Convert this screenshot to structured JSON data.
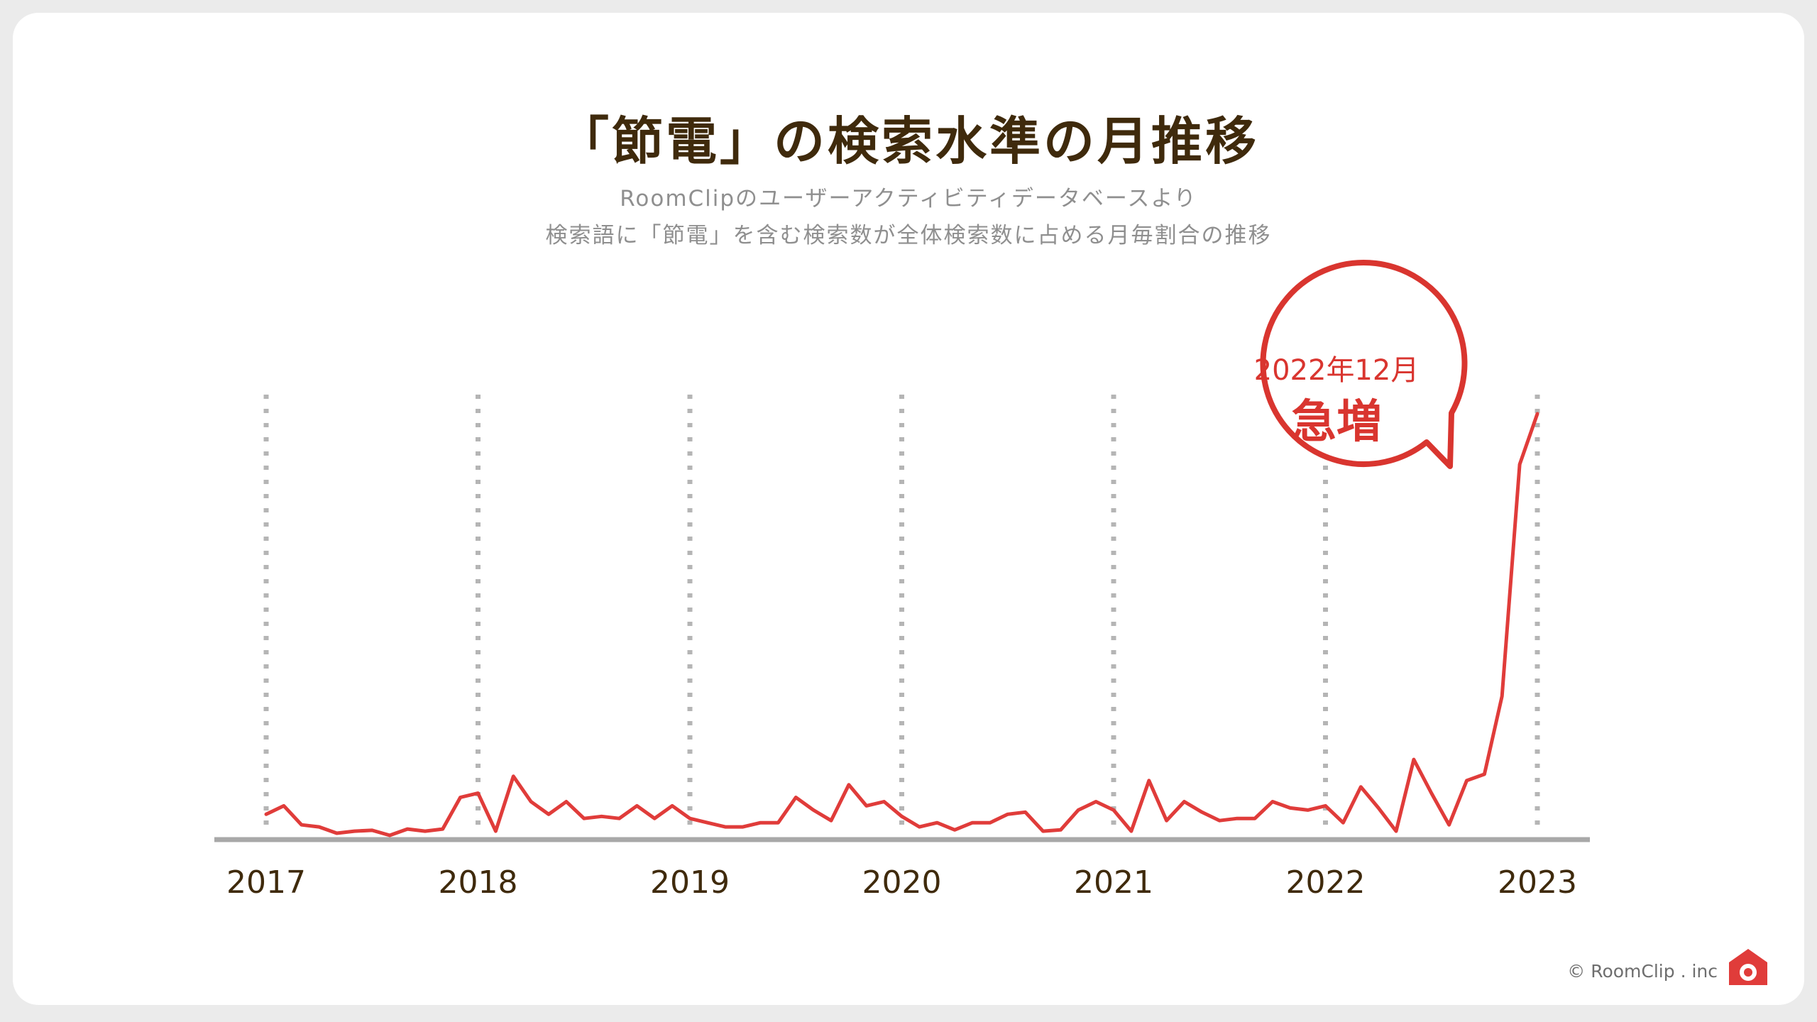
{
  "title": "「節電」の検索水準の月推移",
  "subtitle_lines": [
    "RoomClipのユーザーアクティビティデータベースより",
    "検索語に「節電」を含む検索数が全体検索数に占める月毎割合の推移"
  ],
  "annotation": {
    "date": "2022年12月",
    "label": "急増"
  },
  "copyright": "© RoomClip . inc",
  "colors": {
    "line": "#e03c3a",
    "axis": "#a8a8a8",
    "grid": "#b5b5b5",
    "title": "#3f2a0c",
    "annotation": "#d9352f"
  },
  "chart_data": {
    "type": "line",
    "title": "「節電」の検索水準の月推移",
    "xlabel": "",
    "ylabel": "",
    "x_ticks": [
      "2017",
      "2018",
      "2019",
      "2020",
      "2021",
      "2022",
      "2023"
    ],
    "xlim": [
      2017,
      2023
    ],
    "ylim": [
      0,
      100
    ],
    "grid": "vertical dotted lines at each year",
    "series": [
      {
        "values": [
          5,
          7,
          2.5,
          2,
          0.5,
          1,
          1.2,
          0,
          1.5,
          1,
          1.5,
          9,
          10,
          1,
          14,
          8,
          5,
          8,
          4,
          4.5,
          4,
          7,
          4,
          7,
          4,
          3,
          2,
          2,
          3,
          3,
          9,
          6,
          3.5,
          12,
          7,
          8,
          4.5,
          2,
          3,
          1.3,
          3,
          3,
          5,
          5.5,
          1,
          1.3,
          6,
          8,
          6,
          1,
          13,
          3.5,
          8,
          5.5,
          3.5,
          4,
          4,
          8,
          6.5,
          6,
          7,
          3,
          11.5,
          6.5,
          1,
          18,
          10,
          2.5,
          13,
          14.5,
          33,
          88,
          100
        ]
      }
    ]
  }
}
